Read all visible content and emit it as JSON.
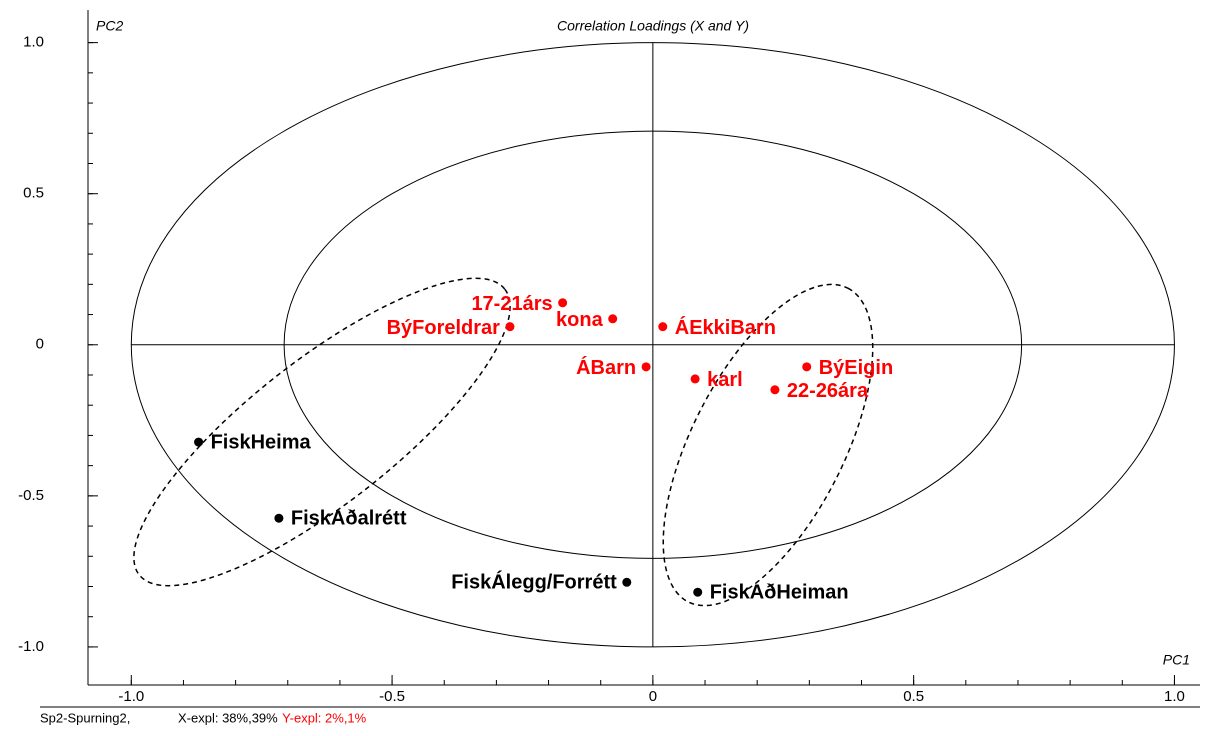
{
  "chart_data": {
    "type": "scatter",
    "title": "Correlation Loadings (X and Y)",
    "xlabel": "PC1",
    "ylabel": "PC2",
    "xlim": [
      -1.083,
      1.049
    ],
    "ylim": [
      -1.126,
      1.108
    ],
    "xticks": [
      {
        "value": -1,
        "label": "-1.0"
      },
      -0.5,
      0,
      0.5,
      {
        "value": 1,
        "label": "1.0"
      }
    ],
    "yticks": [
      {
        "value": -1,
        "label": "-1.0"
      },
      -0.5,
      0,
      0.5,
      {
        "value": 1,
        "label": "1.0"
      }
    ],
    "xminor_ticks": [
      -1.0,
      -0.9,
      -0.8,
      -0.7,
      -0.6,
      -0.5,
      -0.4,
      -0.3,
      -0.2,
      -0.1,
      0,
      0.1,
      0.2,
      0.3,
      0.4,
      0.5,
      0.6,
      0.7,
      0.8,
      0.9,
      1.0
    ],
    "yminor_ticks": [
      -1.0,
      -0.9,
      -0.8,
      -0.7,
      -0.6,
      -0.5,
      -0.4,
      -0.3,
      -0.2,
      -0.1,
      0,
      0.1,
      0.2,
      0.3,
      0.4,
      0.5,
      0.6,
      0.7,
      0.8,
      0.9,
      1.0
    ],
    "circle_radii": [
      1,
      0.707
    ],
    "series": [
      {
        "color": "#000000",
        "labels": [
          "FiskHeima",
          "FiskAðalrétt",
          "FiskÁlegg/Forrétt",
          "FiskAðHeiman"
        ],
        "x": [
          -0.871,
          -0.717,
          -0.05,
          0.086
        ],
        "values": [
          -0.322,
          -0.574,
          -0.786,
          -0.819
        ]
      },
      {
        "color": "#ff0000",
        "labels": [
          "17-21árs",
          "kona",
          "BýForeldrar",
          "ÁEkkiBarn",
          "ÁBarn",
          "karl",
          "BýEigin",
          "22-26ára"
        ],
        "x": [
          -0.173,
          -0.077,
          -0.274,
          0.019,
          -0.013,
          0.081,
          0.295,
          0.234
        ],
        "values": [
          0.139,
          0.086,
          0.06,
          0.06,
          -0.073,
          -0.113,
          -0.073,
          -0.149
        ]
      }
    ],
    "footer": {
      "name": "Sp2-Spurning2,",
      "x_expl": "X-expl: 38%,39%",
      "y_expl": "Y-expl: 2%,1%",
      "y_color": "#ff0000"
    }
  }
}
